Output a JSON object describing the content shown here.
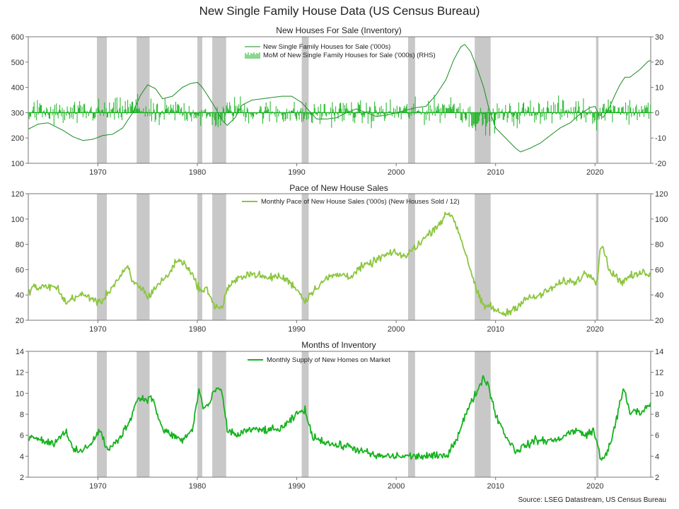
{
  "title": "New Single Family House Data (US Census Bureau)",
  "source": "Source: LSEG Datastream, US Census Bureau",
  "colors": {
    "recession": "#c8c8c8",
    "dark_green": "#1a8a22",
    "bright_green": "#16b21e",
    "light_green": "#8cc63f",
    "axis": "#777777"
  },
  "x_ticks": [
    "1970",
    "1980",
    "1990",
    "2000",
    "2010",
    "2020"
  ],
  "chart_data": [
    {
      "type": "line",
      "subtitle": "New Houses For Sale (Inventory)",
      "x_range": [
        1963.0,
        2025.6
      ],
      "ylim": [
        100,
        600
      ],
      "y_ticks": [
        600,
        500,
        400,
        300,
        200,
        100
      ],
      "y2lim": [
        -20,
        30
      ],
      "y2_ticks": [
        30,
        20,
        10,
        0,
        -10,
        -20
      ],
      "recessions": [
        [
          1969.9,
          1970.9
        ],
        [
          1973.9,
          1975.2
        ],
        [
          1980.0,
          1980.5
        ],
        [
          1981.5,
          1982.9
        ],
        [
          1990.5,
          1991.2
        ],
        [
          2001.2,
          2001.9
        ],
        [
          2007.9,
          2009.5
        ],
        [
          2020.1,
          2020.35
        ]
      ],
      "series": [
        {
          "name": "New Single Family Houses for Sale ('000s)",
          "axis": "left",
          "x": [
            1963.0,
            1964.0,
            1965.0,
            1966.5,
            1967.5,
            1968.5,
            1969.5,
            1970.5,
            1971.5,
            1972.5,
            1973.5,
            1974.3,
            1975.0,
            1975.8,
            1976.5,
            1977.5,
            1978.5,
            1979.3,
            1980.0,
            1980.5,
            1981.0,
            1981.8,
            1982.5,
            1983.0,
            1983.8,
            1984.5,
            1985.5,
            1986.5,
            1987.5,
            1988.5,
            1989.5,
            1990.5,
            1991.3,
            1992.0,
            1993.0,
            1994.0,
            1995.0,
            1996.0,
            1997.0,
            1998.0,
            1999.0,
            2000.0,
            2001.0,
            2002.0,
            2003.0,
            2004.0,
            2005.0,
            2005.8,
            2006.5,
            2006.9,
            2007.5,
            2008.2,
            2008.8,
            2009.3,
            2010.0,
            2011.0,
            2012.0,
            2012.5,
            2013.5,
            2014.5,
            2015.5,
            2016.5,
            2017.5,
            2018.5,
            2019.5,
            2020.0,
            2020.3,
            2020.8,
            2021.5,
            2022.0,
            2022.5,
            2023.0,
            2023.5,
            2024.0,
            2024.5,
            2025.0,
            2025.4
          ],
          "values": [
            235,
            255,
            260,
            230,
            205,
            190,
            195,
            210,
            215,
            240,
            300,
            370,
            410,
            395,
            355,
            365,
            400,
            415,
            420,
            400,
            370,
            320,
            270,
            250,
            280,
            330,
            350,
            355,
            360,
            365,
            365,
            340,
            305,
            275,
            275,
            280,
            300,
            315,
            300,
            285,
            290,
            300,
            310,
            320,
            325,
            370,
            430,
            510,
            560,
            570,
            540,
            470,
            400,
            320,
            240,
            200,
            160,
            145,
            160,
            180,
            210,
            240,
            260,
            295,
            320,
            325,
            300,
            280,
            325,
            370,
            410,
            440,
            440,
            455,
            470,
            490,
            505
          ]
        },
        {
          "name": "MoM of New Single Family Houses for Sale ('000s) (RHS)",
          "axis": "right",
          "type": "bar",
          "style": "monthly-bars"
        }
      ]
    },
    {
      "type": "line",
      "subtitle": "Pace of New House Sales",
      "x_range": [
        1963.0,
        2025.6
      ],
      "ylim": [
        20,
        120
      ],
      "y_ticks": [
        120,
        100,
        80,
        60,
        40,
        20
      ],
      "y2lim": [
        20,
        120
      ],
      "y2_ticks": [
        120,
        100,
        80,
        60,
        40,
        20
      ],
      "series": [
        {
          "name": "Monthly Pace of New House Sales ('000s) (New Houses Sold / 12)",
          "axis": "left",
          "x": [
            1963.0,
            1963.5,
            1964.0,
            1965.0,
            1966.0,
            1966.8,
            1967.5,
            1968.5,
            1969.5,
            1970.2,
            1971.0,
            1972.0,
            1973.0,
            1973.5,
            1974.5,
            1975.0,
            1976.0,
            1977.0,
            1978.0,
            1979.0,
            1980.0,
            1980.5,
            1981.0,
            1981.8,
            1982.5,
            1983.0,
            1984.0,
            1985.0,
            1986.0,
            1987.0,
            1988.0,
            1989.0,
            1990.0,
            1990.8,
            1991.5,
            1992.5,
            1993.5,
            1994.5,
            1995.5,
            1996.5,
            1997.5,
            1998.5,
            1999.5,
            2000.5,
            2001.0,
            2001.5,
            2002.5,
            2003.5,
            2004.5,
            2005.3,
            2005.8,
            2006.5,
            2007.3,
            2008.0,
            2008.8,
            2009.5,
            2010.0,
            2011.0,
            2012.0,
            2013.0,
            2014.0,
            2015.0,
            2016.0,
            2017.0,
            2018.0,
            2019.0,
            2019.8,
            2020.2,
            2020.5,
            2020.8,
            2021.3,
            2022.0,
            2022.8,
            2023.5,
            2024.0,
            2024.5,
            2025.0,
            2025.4
          ],
          "values": [
            42,
            47,
            45,
            47,
            45,
            33,
            38,
            40,
            37,
            33,
            42,
            52,
            62,
            50,
            45,
            38,
            48,
            55,
            68,
            63,
            48,
            42,
            45,
            30,
            30,
            45,
            52,
            57,
            56,
            53,
            55,
            52,
            45,
            35,
            42,
            50,
            55,
            56,
            55,
            62,
            65,
            70,
            73,
            72,
            70,
            75,
            82,
            90,
            98,
            105,
            100,
            85,
            65,
            45,
            30,
            32,
            27,
            25,
            30,
            37,
            38,
            42,
            47,
            51,
            50,
            57,
            55,
            50,
            75,
            80,
            62,
            55,
            50,
            55,
            55,
            57,
            58,
            57
          ]
        }
      ]
    },
    {
      "type": "line",
      "subtitle": "Months of Inventory",
      "x_range": [
        1963.0,
        2025.6
      ],
      "ylim": [
        2,
        14
      ],
      "y_ticks": [
        14,
        12,
        10,
        8,
        6,
        4,
        2
      ],
      "y2lim": [
        2,
        14
      ],
      "y2_ticks": [
        14,
        12,
        10,
        8,
        6,
        4,
        2
      ],
      "series": [
        {
          "name": "Monthly Supply of New Homes on Market",
          "axis": "left",
          "x": [
            1963.0,
            1963.5,
            1964.5,
            1965.5,
            1966.8,
            1967.5,
            1968.5,
            1969.5,
            1970.2,
            1971.0,
            1972.0,
            1973.0,
            1974.0,
            1974.8,
            1975.5,
            1976.5,
            1977.5,
            1978.5,
            1979.5,
            1980.2,
            1980.6,
            1981.2,
            1981.9,
            1982.5,
            1983.0,
            1984.0,
            1985.0,
            1986.0,
            1987.0,
            1988.0,
            1989.0,
            1990.0,
            1990.8,
            1991.5,
            1992.5,
            1994.0,
            1995.0,
            1996.5,
            1998.0,
            1999.5,
            2000.5,
            2001.5,
            2002.5,
            2004.0,
            2005.0,
            2006.0,
            2007.0,
            2008.0,
            2008.8,
            2009.2,
            2010.0,
            2011.0,
            2012.0,
            2013.0,
            2014.0,
            2015.0,
            2016.0,
            2017.0,
            2018.0,
            2019.0,
            2019.8,
            2020.3,
            2020.6,
            2021.0,
            2021.8,
            2022.5,
            2022.9,
            2023.5,
            2024.0,
            2024.5,
            2025.0,
            2025.4
          ],
          "values": [
            5.5,
            6,
            5.5,
            5.2,
            6.5,
            4.5,
            4.5,
            5.5,
            6.5,
            4.5,
            5.5,
            7,
            9.5,
            9.5,
            9.5,
            6.5,
            6,
            5.5,
            6.5,
            10.5,
            8.5,
            9,
            10.5,
            10,
            6.5,
            6,
            6.5,
            6.5,
            6.5,
            6.5,
            7,
            8,
            8.5,
            6,
            5.5,
            5,
            5,
            4.5,
            4,
            4,
            4,
            4,
            4,
            4,
            4,
            5.5,
            8,
            10,
            11.5,
            11,
            8,
            6,
            4.5,
            5,
            5.5,
            5.5,
            5.5,
            6,
            6.5,
            6,
            6.5,
            5,
            3.5,
            4,
            6,
            9,
            10.5,
            8,
            8.5,
            8,
            8.5,
            9
          ]
        }
      ]
    }
  ]
}
